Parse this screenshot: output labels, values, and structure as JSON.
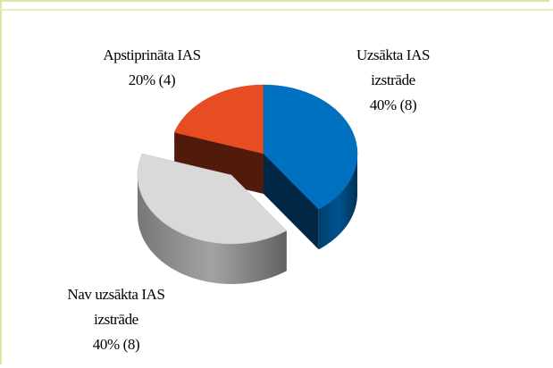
{
  "chart_data": {
    "type": "pie",
    "categories": [
      "Uzsākta IAS izstrāde",
      "Nav uzsākta IAS izstrāde",
      "Apstiprināta IAS"
    ],
    "values": [
      40,
      40,
      20
    ],
    "value_labels": [
      "40% (8)",
      "40% (8)",
      "20% (4)"
    ],
    "colors": [
      "#0070c0",
      "#d9d9d9",
      "#e84c22"
    ]
  }
}
